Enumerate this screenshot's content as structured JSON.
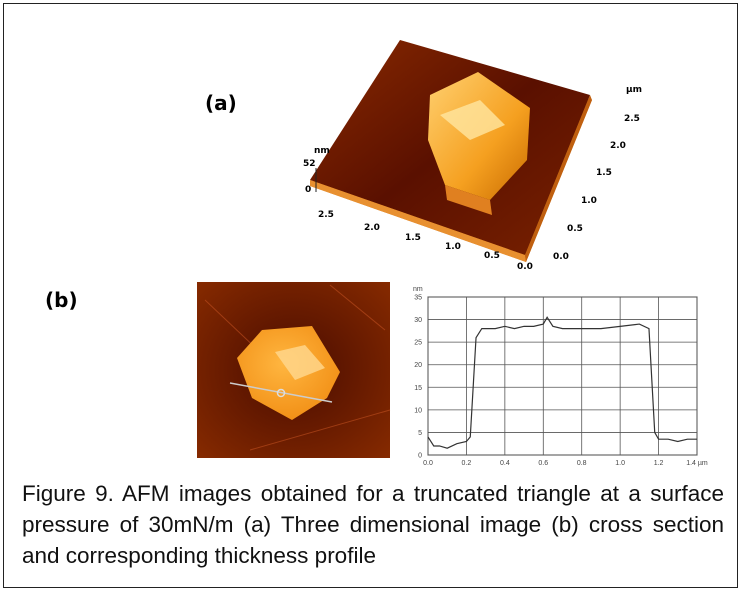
{
  "panel_a": {
    "label": "(a)",
    "z_unit": "nm",
    "z_ticks": [
      "52",
      "0"
    ],
    "x_ticks": [
      "2.5",
      "2.0",
      "1.5",
      "1.0",
      "0.5",
      "0.0"
    ],
    "y_ticks": [
      "0.0",
      "0.5",
      "1.0",
      "1.5",
      "2.0",
      "2.5"
    ],
    "y_unit": "µm"
  },
  "panel_b": {
    "label": "(b)"
  },
  "chart_data": {
    "type": "line",
    "y_unit": "nm",
    "x": [
      0.0,
      0.03,
      0.06,
      0.1,
      0.15,
      0.2,
      0.22,
      0.25,
      0.28,
      0.35,
      0.4,
      0.45,
      0.5,
      0.55,
      0.6,
      0.62,
      0.65,
      0.7,
      0.8,
      0.9,
      1.0,
      1.1,
      1.15,
      1.18,
      1.2,
      1.25,
      1.3,
      1.35,
      1.4
    ],
    "values": [
      4,
      2,
      2,
      1.5,
      2.5,
      3,
      4,
      26,
      28,
      28,
      28.5,
      28,
      28.5,
      28.5,
      29,
      30.5,
      28.5,
      28,
      28,
      28,
      28.5,
      29,
      28,
      5,
      3.5,
      3.5,
      3,
      3.5,
      3.5
    ],
    "color": "#333333",
    "xlim": [
      0,
      1.4
    ],
    "ylim": [
      0,
      35
    ],
    "xticks": [
      {
        "value": 0,
        "label": "0.0"
      },
      {
        "value": 0.2,
        "label": "0.2"
      },
      {
        "value": 0.4,
        "label": "0.4"
      },
      {
        "value": 0.6,
        "label": "0.6"
      },
      {
        "value": 0.8,
        "label": "0.8"
      },
      {
        "value": 1.0,
        "label": "1.0"
      },
      {
        "value": 1.2,
        "label": "1.2"
      },
      {
        "value": 1.4,
        "label": "1.4 µm"
      }
    ],
    "yticks": [
      0,
      5,
      10,
      15,
      20,
      25,
      30,
      35
    ],
    "grid": true
  },
  "caption": "Figure 9. AFM images obtained for a truncated triangle at a surface pressure of 30mN/m (a) Three dimensional image (b) cross section and corresponding thickness profile"
}
